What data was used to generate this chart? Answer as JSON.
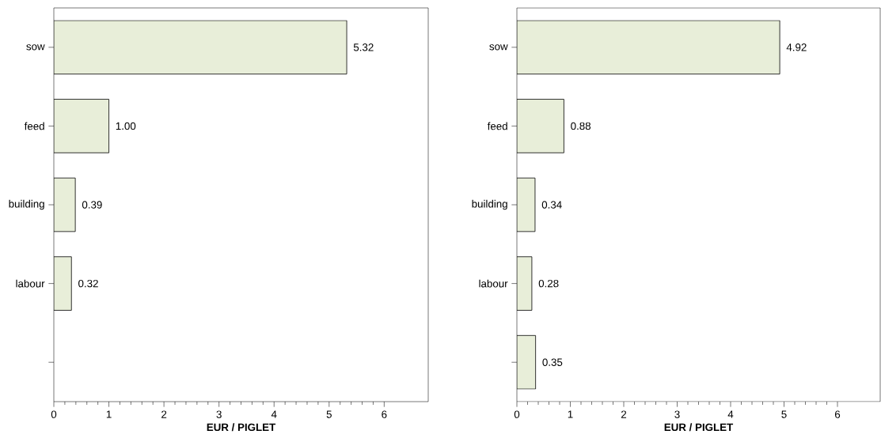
{
  "chart_data": [
    {
      "type": "bar",
      "orientation": "horizontal",
      "categories": [
        "sow",
        "feed",
        "building",
        "labour",
        null
      ],
      "values": [
        5.32,
        1.0,
        0.39,
        0.32,
        null
      ],
      "value_labels": [
        "5.32",
        "1.00",
        "0.39",
        "0.32",
        null
      ],
      "color": "#e8eed9",
      "xlim": [
        0,
        6.8
      ],
      "xticks": [
        0,
        1,
        2,
        3,
        4,
        5,
        6
      ],
      "xlabel": "EUR / PIGLET"
    },
    {
      "type": "bar",
      "orientation": "horizontal",
      "categories": [
        "sow",
        "feed",
        "building",
        "labour",
        null
      ],
      "values": [
        4.92,
        0.88,
        0.34,
        0.28,
        0.35
      ],
      "value_labels": [
        "4.92",
        "0.88",
        "0.34",
        "0.28",
        "0.35"
      ],
      "color": "#e8eed9",
      "xlim": [
        0,
        6.8
      ],
      "xticks": [
        0,
        1,
        2,
        3,
        4,
        5,
        6
      ],
      "xlabel": "EUR / PIGLET"
    }
  ]
}
